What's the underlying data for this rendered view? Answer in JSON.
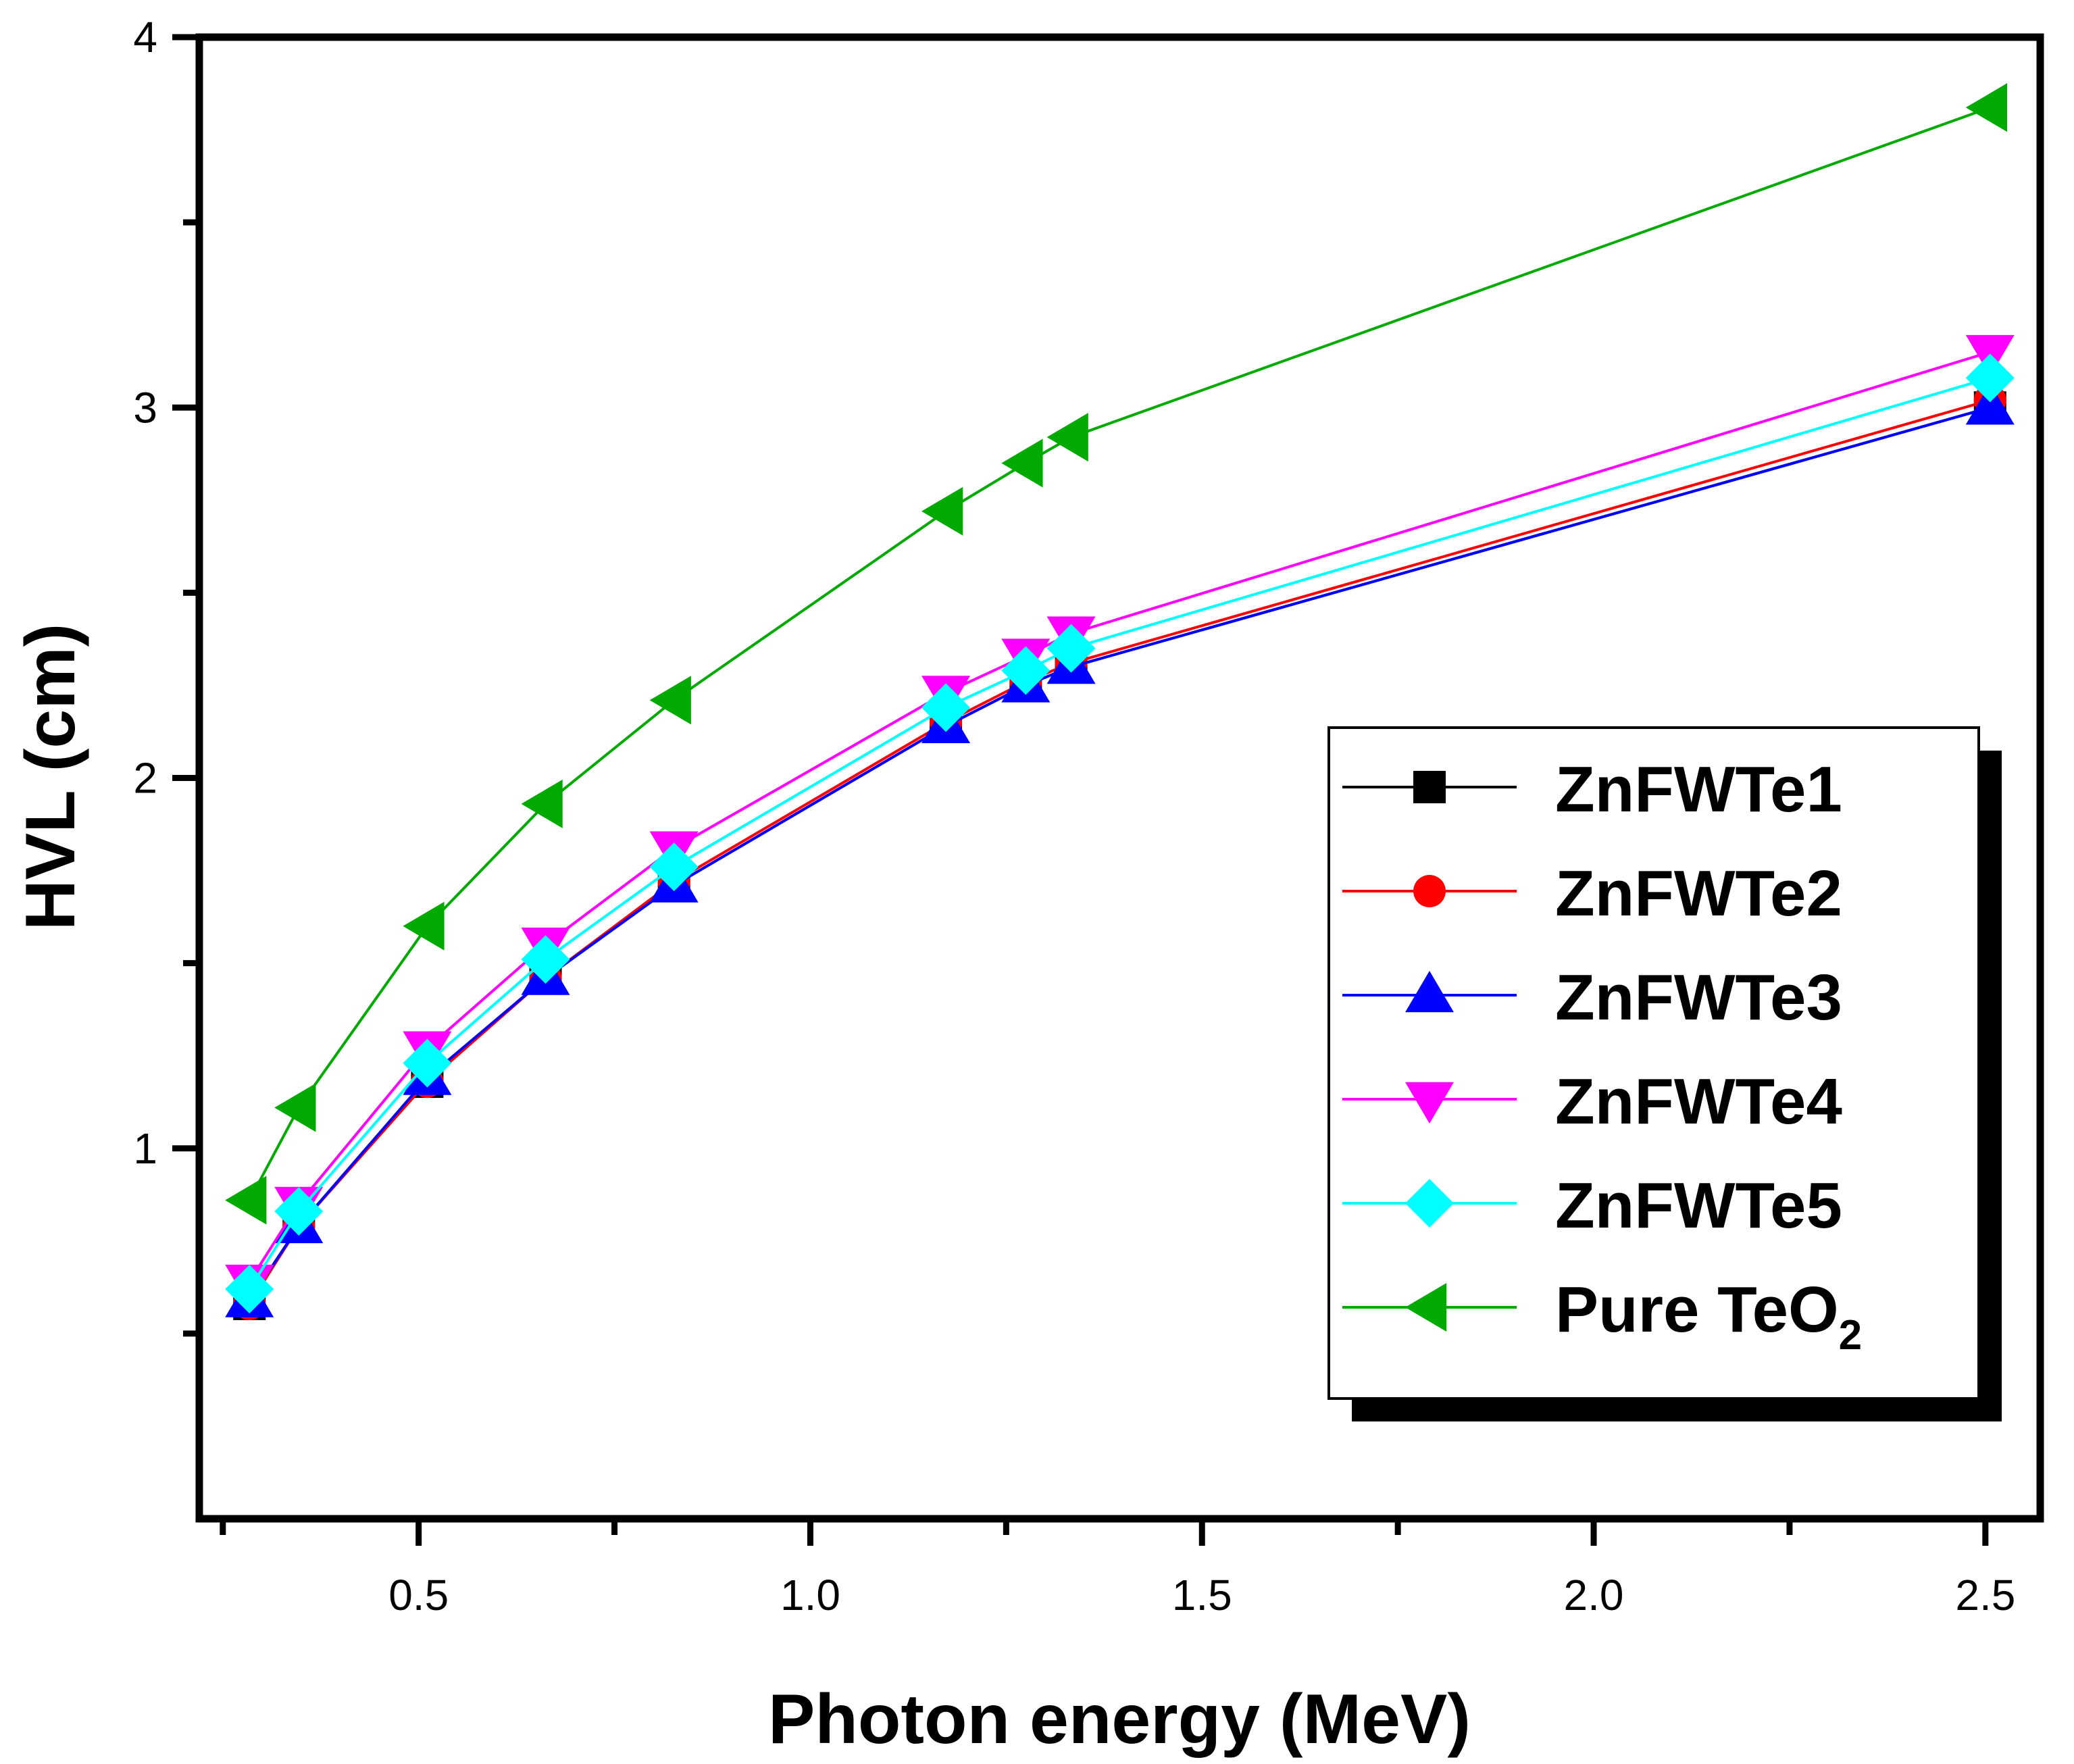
{
  "chart_data": {
    "type": "line",
    "title": "",
    "xlabel": "Photon energy (MeV)",
    "ylabel": "HVL (cm)",
    "xlim": [
      0.22,
      2.57
    ],
    "ylim": [
      0.0,
      4.0
    ],
    "x_ticks": [
      0.5,
      1.0,
      1.5,
      2.0,
      2.5
    ],
    "x_tick_labels": [
      "0.5",
      "1.0",
      "1.5",
      "2.0",
      "2.5"
    ],
    "y_ticks": [
      1,
      2,
      3,
      4
    ],
    "y_tick_labels": [
      "1",
      "2",
      "3",
      "4"
    ],
    "x_minor_ticks": [
      0.25,
      0.75,
      1.25,
      1.75,
      2.25
    ],
    "y_minor_ticks": [
      0.5,
      1.5,
      2.5,
      3.5
    ],
    "grid": false,
    "legend_position": "lower-right",
    "x": [
      0.284,
      0.347,
      0.511,
      0.662,
      0.826,
      1.173,
      1.275,
      1.333,
      2.506
    ],
    "series": [
      {
        "name": "ZnFWTe1",
        "color": "#000000",
        "marker": "square",
        "values": [
          0.58,
          0.79,
          1.18,
          1.46,
          1.71,
          2.14,
          2.25,
          2.3,
          3.0
        ]
      },
      {
        "name": "ZnFWTe2",
        "color": "#ff0000",
        "marker": "circle",
        "values": [
          0.58,
          0.79,
          1.18,
          1.46,
          1.72,
          2.15,
          2.26,
          2.31,
          3.02
        ]
      },
      {
        "name": "ZnFWTe3",
        "color": "#0000ff",
        "marker": "triangle-up",
        "values": [
          0.59,
          0.79,
          1.19,
          1.46,
          1.71,
          2.14,
          2.25,
          2.3,
          3.0
        ]
      },
      {
        "name": "ZnFWTe4",
        "color": "#ff00ff",
        "marker": "triangle-down",
        "values": [
          0.64,
          0.85,
          1.27,
          1.55,
          1.81,
          2.23,
          2.33,
          2.39,
          3.15
        ]
      },
      {
        "name": "ZnFWTe5",
        "color": "#00ffff",
        "marker": "diamond",
        "values": [
          0.62,
          0.83,
          1.23,
          1.51,
          1.76,
          2.19,
          2.29,
          2.35,
          3.08
        ]
      },
      {
        "name": "Pure TeO",
        "subscript": "2",
        "color": "#00aa00",
        "marker": "triangle-left",
        "values": [
          0.86,
          1.11,
          1.6,
          1.93,
          2.21,
          2.72,
          2.85,
          2.92,
          3.81
        ]
      }
    ]
  }
}
